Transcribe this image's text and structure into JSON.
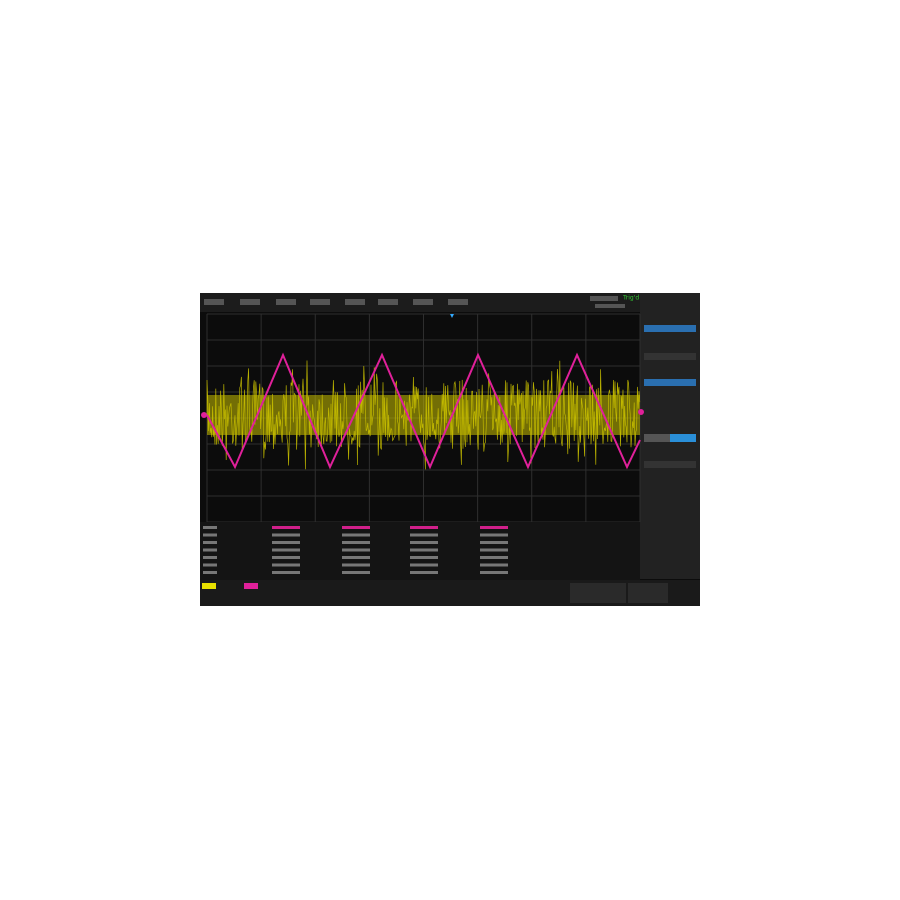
{
  "status": {
    "trigger": "Trig'd"
  }
}
